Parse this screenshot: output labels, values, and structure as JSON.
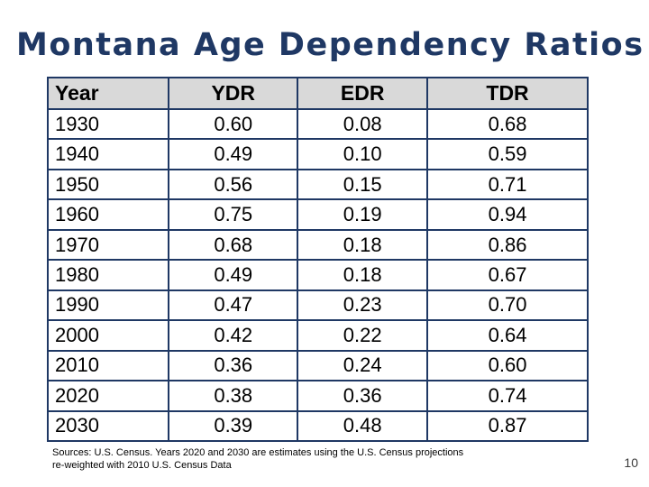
{
  "slide": {
    "title": "Montana Age Dependency Ratios",
    "page_number": "10",
    "source_note_line1": "Sources: U.S. Census.  Years 2020 and 2030 are estimates using the U.S. Census projections",
    "source_note_line2": "re-weighted with 2010 U.S. Census Data"
  },
  "colors": {
    "title_navy": "#1F3864",
    "table_border_navy": "#1F3864",
    "header_gray": "#D9D9D9",
    "body_text": "#000000"
  },
  "chart_data": {
    "type": "table",
    "title": "Montana Age Dependency Ratios",
    "columns": [
      "Year",
      "YDR",
      "EDR",
      "TDR"
    ],
    "rows": [
      [
        "1930",
        "0.60",
        "0.08",
        "0.68"
      ],
      [
        "1940",
        "0.49",
        "0.10",
        "0.59"
      ],
      [
        "1950",
        "0.56",
        "0.15",
        "0.71"
      ],
      [
        "1960",
        "0.75",
        "0.19",
        "0.94"
      ],
      [
        "1970",
        "0.68",
        "0.18",
        "0.86"
      ],
      [
        "1980",
        "0.49",
        "0.18",
        "0.67"
      ],
      [
        "1990",
        "0.47",
        "0.23",
        "0.70"
      ],
      [
        "2000",
        "0.42",
        "0.22",
        "0.64"
      ],
      [
        "2010",
        "0.36",
        "0.24",
        "0.60"
      ],
      [
        "2020",
        "0.38",
        "0.36",
        "0.74"
      ],
      [
        "2030",
        "0.39",
        "0.48",
        "0.87"
      ]
    ],
    "layout_hints": {
      "header_background": "#D9D9D9",
      "grid": "all-borders",
      "year_column_align": "left",
      "value_columns_align": "center"
    }
  }
}
